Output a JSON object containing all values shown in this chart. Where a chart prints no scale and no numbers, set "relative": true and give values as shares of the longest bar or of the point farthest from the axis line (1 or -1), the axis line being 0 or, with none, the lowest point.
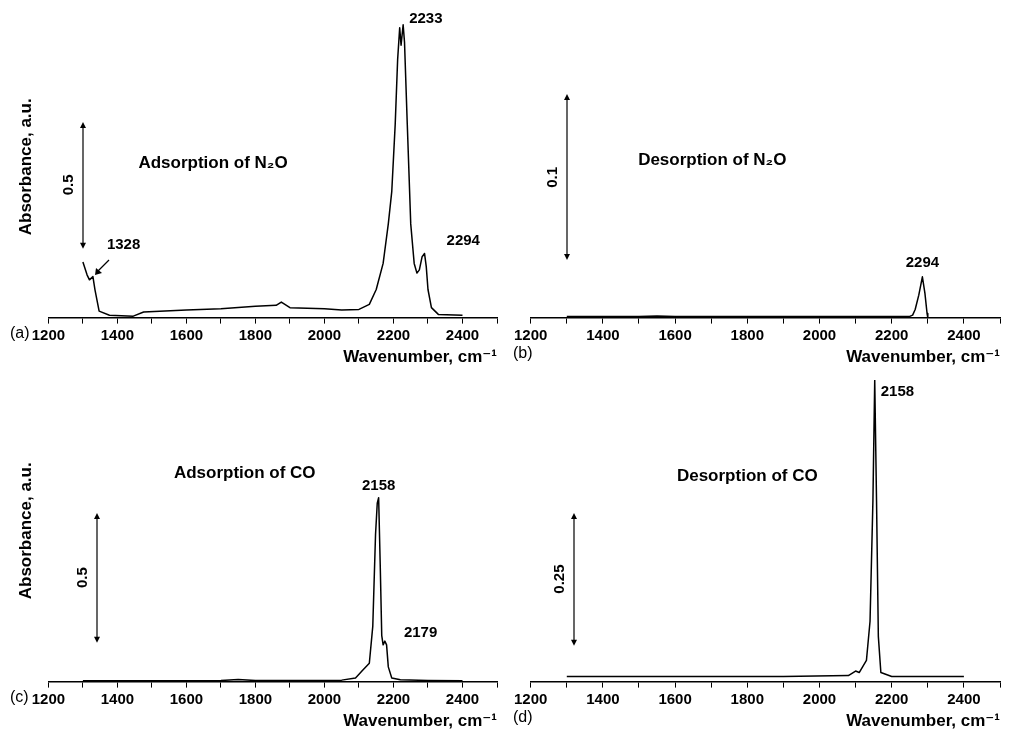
{
  "chart_data": [
    {
      "type": "line",
      "title": "Adsorption of N₂O",
      "xlabel": "Wavenumber, cm⁻¹",
      "ylabel": "Absorbance, a.u.",
      "relative": true,
      "color": "#000000",
      "marker": "none",
      "grid": false,
      "legend": false,
      "xlim": [
        1200,
        2500
      ],
      "xticks": [
        1200,
        {
          "value": 1300,
          "label": null
        },
        1400,
        {
          "value": 1500,
          "label": null
        },
        1600,
        {
          "value": 1700,
          "label": null
        },
        1800,
        {
          "value": 1900,
          "label": null
        },
        2000,
        {
          "value": 2100,
          "label": null
        },
        2200,
        {
          "value": 2300,
          "label": null
        },
        2400,
        {
          "value": 2500,
          "label": null
        }
      ],
      "x": [
        1300,
        1312,
        1319,
        1329,
        1335,
        1347,
        1377,
        1446,
        1476,
        1600,
        1700,
        1800,
        1860,
        1875,
        1900,
        2000,
        2050,
        2100,
        2130,
        2150,
        2170,
        2185,
        2195,
        2205,
        2212,
        2218,
        2222,
        2228,
        2232,
        2240,
        2250,
        2260,
        2268,
        2275,
        2283,
        2290,
        2295,
        2300,
        2310,
        2330,
        2400
      ],
      "values": [
        0.19,
        0.146,
        0.129,
        0.14,
        0.095,
        0.022,
        0.008,
        0.005,
        0.019,
        0.026,
        0.03,
        0.039,
        0.042,
        0.053,
        0.034,
        0.03,
        0.026,
        0.028,
        0.045,
        0.096,
        0.185,
        0.32,
        0.43,
        0.66,
        0.88,
        0.99,
        0.93,
        1.0,
        0.94,
        0.66,
        0.32,
        0.185,
        0.152,
        0.163,
        0.208,
        0.219,
        0.174,
        0.096,
        0.034,
        0.011,
        0.008
      ],
      "annotations": [
        "0.5",
        "(a)",
        {
          "text": "2233",
          "x": 2228,
          "y": 1.0
        },
        {
          "text": "1328",
          "x": 1329,
          "y": 0.14
        },
        {
          "text": "2294",
          "x": 2290,
          "y": 0.22
        }
      ]
    },
    {
      "type": "line",
      "title": "Desorption of N₂O",
      "xlabel": "Wavenumber, cm⁻¹",
      "relative": true,
      "color": "#000000",
      "marker": "none",
      "grid": false,
      "legend": false,
      "xlim": [
        1200,
        2500
      ],
      "xticks": [
        1200,
        {
          "value": 1300,
          "label": null
        },
        1400,
        {
          "value": 1500,
          "label": null
        },
        1600,
        {
          "value": 1700,
          "label": null
        },
        1800,
        {
          "value": 1900,
          "label": null
        },
        2000,
        {
          "value": 2100,
          "label": null
        },
        2200,
        {
          "value": 2300,
          "label": null
        },
        2400,
        {
          "value": 2500,
          "label": null
        }
      ],
      "x": [
        1300,
        1400,
        1500,
        1550,
        1600,
        1700,
        1800,
        1900,
        2000,
        2100,
        2200,
        2250,
        2258,
        2265,
        2275,
        2285,
        2292,
        2298,
        2300
      ],
      "values": [
        0.025,
        0.025,
        0.025,
        0.04,
        0.025,
        0.025,
        0.025,
        0.025,
        0.025,
        0.025,
        0.025,
        0.03,
        0.06,
        0.2,
        0.55,
        1.0,
        0.6,
        0.1,
        0.0
      ],
      "annotations": [
        "0.1",
        "(b)",
        {
          "text": "2294",
          "x": 2285,
          "y": 1.0
        }
      ]
    },
    {
      "type": "line",
      "title": "Adsorption of CO",
      "xlabel": "Wavenumber, cm⁻¹",
      "ylabel": "Absorbance, a.u.",
      "relative": true,
      "color": "#000000",
      "marker": "none",
      "grid": false,
      "legend": false,
      "xlim": [
        1200,
        2500
      ],
      "xticks": [
        1200,
        {
          "value": 1300,
          "label": null
        },
        1400,
        {
          "value": 1500,
          "label": null
        },
        1600,
        {
          "value": 1700,
          "label": null
        },
        1800,
        {
          "value": 1900,
          "label": null
        },
        2000,
        {
          "value": 2100,
          "label": null
        },
        2200,
        {
          "value": 2300,
          "label": null
        },
        2400,
        {
          "value": 2500,
          "label": null
        }
      ],
      "x": [
        1300,
        1500,
        1700,
        1750,
        1800,
        2000,
        2050,
        2090,
        2110,
        2130,
        2140,
        2148,
        2153,
        2157,
        2162,
        2166,
        2170,
        2175,
        2180,
        2185,
        2195,
        2220,
        2300,
        2400
      ],
      "values": [
        0.005,
        0.005,
        0.006,
        0.012,
        0.006,
        0.006,
        0.008,
        0.02,
        0.06,
        0.1,
        0.3,
        0.8,
        0.97,
        1.0,
        0.6,
        0.25,
        0.2,
        0.22,
        0.2,
        0.08,
        0.02,
        0.01,
        0.006,
        0.005
      ],
      "annotations": [
        "0.5",
        "(c)",
        {
          "text": "2158",
          "x": 2157,
          "y": 1.0
        },
        {
          "text": "2179",
          "x": 2178,
          "y": 0.22
        }
      ]
    },
    {
      "type": "line",
      "title": "Desorption of CO",
      "xlabel": "Wavenumber, cm⁻¹",
      "relative": true,
      "color": "#000000",
      "marker": "none",
      "grid": false,
      "legend": false,
      "xlim": [
        1200,
        2500
      ],
      "xticks": [
        1200,
        {
          "value": 1300,
          "label": null
        },
        1400,
        {
          "value": 1500,
          "label": null
        },
        1600,
        {
          "value": 1700,
          "label": null
        },
        1800,
        {
          "value": 1900,
          "label": null
        },
        2000,
        {
          "value": 2100,
          "label": null
        },
        2200,
        {
          "value": 2300,
          "label": null
        },
        2400,
        {
          "value": 2500,
          "label": null
        }
      ],
      "x": [
        1300,
        1500,
        1700,
        1900,
        2080,
        2100,
        2110,
        2130,
        2140,
        2148,
        2153,
        2158,
        2163,
        2170,
        2200,
        2300,
        2400
      ],
      "values": [
        0.017,
        0.017,
        0.017,
        0.017,
        0.02,
        0.035,
        0.03,
        0.07,
        0.2,
        0.6,
        1.0,
        0.6,
        0.15,
        0.03,
        0.017,
        0.017,
        0.017
      ],
      "annotations": [
        "0.25",
        "(d)",
        {
          "text": "2158",
          "x": 2153,
          "y": 1.0
        }
      ]
    }
  ]
}
